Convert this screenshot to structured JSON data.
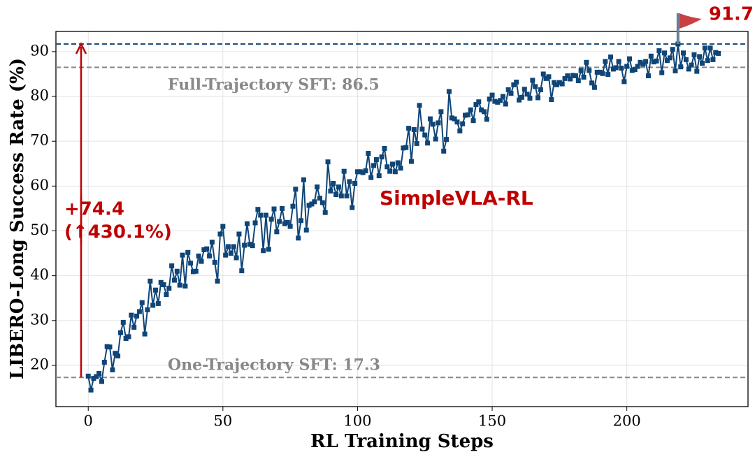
{
  "chart_data": {
    "type": "line",
    "x_label": "RL Training Steps",
    "y_label": "LIBERO-Long Success Rate (%)",
    "xlim": [
      -12,
      245
    ],
    "ylim": [
      10.8,
      94.5
    ],
    "xticks": [
      0,
      50,
      100,
      150,
      200
    ],
    "yticks": [
      20,
      30,
      40,
      50,
      60,
      70,
      80,
      90
    ],
    "grid": true,
    "x": [
      0,
      1,
      2,
      3,
      4,
      5,
      6,
      7,
      8,
      9,
      10,
      11,
      12,
      13,
      14,
      15,
      16,
      17,
      18,
      19,
      20,
      21,
      22,
      23,
      24,
      25,
      26,
      27,
      28,
      29,
      30,
      31,
      32,
      33,
      34,
      35,
      36,
      37,
      38,
      39,
      40,
      41,
      42,
      43,
      44,
      45,
      46,
      47,
      48,
      49,
      50,
      51,
      52,
      53,
      54,
      55,
      56,
      57,
      58,
      59,
      60,
      61,
      62,
      63,
      64,
      65,
      66,
      67,
      68,
      69,
      70,
      71,
      72,
      73,
      74,
      75,
      76,
      77,
      78,
      79,
      80,
      81,
      82,
      83,
      84,
      85,
      86,
      87,
      88,
      89,
      90,
      91,
      92,
      93,
      94,
      95,
      96,
      97,
      98,
      99,
      100,
      101,
      102,
      103,
      104,
      105,
      106,
      107,
      108,
      109,
      110,
      111,
      112,
      113,
      114,
      115,
      116,
      117,
      118,
      119,
      120,
      121,
      122,
      123,
      124,
      125,
      126,
      127,
      128,
      129,
      130,
      131,
      132,
      133,
      134,
      135,
      136,
      137,
      138,
      139,
      140,
      141,
      142,
      143,
      144,
      145,
      146,
      147,
      148,
      149,
      150,
      151,
      152,
      153,
      154,
      155,
      156,
      157,
      158,
      159,
      160,
      161,
      162,
      163,
      164,
      165,
      166,
      167,
      168,
      169,
      170,
      171,
      172,
      173,
      174,
      175,
      176,
      177,
      178,
      179,
      180,
      181,
      182,
      183,
      184,
      185,
      186,
      187,
      188,
      189,
      190,
      191,
      192,
      193,
      194,
      195,
      196,
      197,
      198,
      199,
      200,
      201,
      202,
      203,
      204,
      205,
      206,
      207,
      208,
      209,
      210,
      211,
      212,
      213,
      214,
      215,
      216,
      217,
      218,
      219,
      220,
      221,
      222,
      223,
      224,
      225,
      226,
      227,
      228,
      229,
      230,
      231,
      232,
      233,
      234
    ],
    "series": [
      {
        "name": "SimpleVLA-RL",
        "color": "#0f4577",
        "values": [
          17.6,
          14.5,
          17.1,
          17.5,
          18.2,
          16.4,
          20.7,
          24.2,
          24.1,
          19.0,
          22.7,
          22.1,
          27.3,
          29.6,
          26.0,
          26.4,
          31.2,
          28.5,
          31.0,
          32.0,
          34.0,
          27.0,
          32.4,
          38.8,
          33.4,
          36.8,
          33.8,
          38.5,
          38.0,
          35.8,
          37.2,
          42.2,
          39.0,
          41.0,
          37.9,
          44.6,
          37.7,
          45.2,
          42.8,
          40.9,
          41.0,
          44.4,
          43.2,
          45.8,
          46.0,
          44.4,
          47.5,
          43.0,
          38.8,
          49.3,
          51.0,
          44.6,
          46.5,
          45.0,
          46.5,
          44.0,
          49.3,
          41.1,
          46.8,
          51.6,
          47.0,
          46.7,
          51.8,
          54.8,
          53.5,
          45.6,
          53.5,
          45.9,
          52.6,
          54.9,
          49.8,
          52.1,
          55.0,
          51.6,
          51.9,
          51.0,
          55.5,
          59.3,
          48.4,
          52.3,
          61.4,
          50.2,
          55.7,
          56.0,
          56.5,
          59.8,
          57.3,
          56.3,
          54.1,
          65.4,
          58.9,
          60.6,
          58.1,
          59.8,
          57.8,
          63.3,
          57.8,
          61.0,
          55.2,
          60.6,
          63.2,
          63.2,
          63.0,
          63.4,
          67.3,
          61.9,
          64.6,
          65.9,
          62.3,
          66.5,
          68.4,
          64.3,
          63.3,
          64.9,
          63.2,
          65.2,
          64.0,
          68.5,
          68.6,
          72.9,
          65.5,
          72.6,
          69.5,
          78.0,
          72.7,
          71.4,
          69.6,
          75.0,
          73.8,
          70.5,
          74.1,
          76.6,
          67.8,
          70.4,
          81.1,
          75.2,
          75.0,
          74.3,
          72.3,
          73.9,
          75.8,
          75.9,
          77.0,
          74.6,
          78.2,
          78.8,
          77.0,
          76.6,
          74.9,
          79.4,
          80.3,
          78.9,
          78.7,
          79.1,
          80.0,
          78.3,
          81.5,
          80.7,
          82.6,
          83.2,
          79.2,
          79.8,
          81.6,
          80.5,
          79.6,
          83.6,
          82.2,
          79.7,
          81.5,
          85.0,
          84.0,
          84.4,
          79.3,
          83.1,
          82.6,
          83.1,
          82.8,
          84.0,
          84.6,
          83.9,
          84.7,
          84.6,
          83.5,
          85.8,
          84.3,
          87.6,
          85.8,
          83.0,
          82.0,
          85.4,
          85.4,
          85.1,
          87.8,
          84.9,
          88.8,
          86.1,
          86.4,
          87.8,
          86.3,
          83.3,
          86.7,
          88.4,
          85.8,
          86.0,
          86.7,
          87.6,
          87.2,
          87.8,
          84.6,
          89.0,
          87.7,
          87.9,
          90.2,
          85.3,
          89.7,
          88.0,
          88.6,
          90.5,
          85.7,
          91.7,
          86.6,
          89.7,
          88.2,
          86.1,
          87.0,
          89.3,
          85.6,
          88.9,
          87.4,
          90.8,
          88.0,
          90.8,
          88.2,
          89.8,
          89.6
        ]
      }
    ],
    "reference_lines": [
      {
        "value": 91.7,
        "color": "#1f4e79",
        "label": "91.7"
      },
      {
        "value": 86.5,
        "color": "#888888",
        "label": "Full-Trajectory SFT: 86.5"
      },
      {
        "value": 17.3,
        "color": "#888888",
        "label": "One-Trajectory SFT: 17.3"
      }
    ],
    "gain_label": [
      "+74.4",
      "(↑430.1%)"
    ],
    "annotation_color": "#c00000"
  }
}
